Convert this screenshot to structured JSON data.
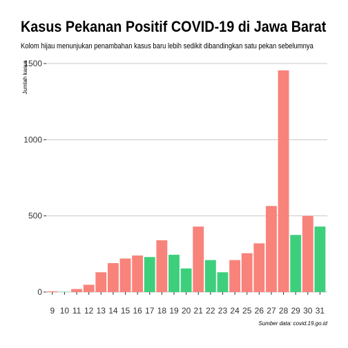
{
  "chart_data": {
    "type": "bar",
    "title": "Kasus Pekanan Positif COVID-19 di Jawa Barat",
    "subtitle": "Kolom hijau menunjukan penambahan kasus baru lebih sedikit dibandingkan satu pekan sebelumnya",
    "caption": "Sumber data: covid.19.go.id",
    "ylabel": "Jumlah kasus",
    "xlabel": "",
    "ylim": [
      0,
      1500
    ],
    "yticks": [
      "0",
      "500",
      "1000",
      "1500"
    ],
    "categories": [
      "9",
      "10",
      "11",
      "12",
      "13",
      "14",
      "15",
      "16",
      "17",
      "18",
      "19",
      "20",
      "21",
      "22",
      "23",
      "24",
      "25",
      "26",
      "27",
      "28",
      "29",
      "30",
      "31"
    ],
    "values": [
      5,
      2,
      20,
      48,
      130,
      190,
      220,
      240,
      230,
      340,
      245,
      155,
      430,
      210,
      130,
      210,
      255,
      320,
      565,
      1455,
      375,
      500,
      430
    ],
    "decrease": [
      false,
      true,
      false,
      false,
      false,
      false,
      false,
      false,
      true,
      false,
      true,
      true,
      false,
      true,
      true,
      false,
      false,
      false,
      false,
      false,
      true,
      false,
      true
    ],
    "colors": {
      "increase": "#f8837a",
      "decrease": "#3ecf7d",
      "grid": "#c8c8c8"
    },
    "grid": true,
    "legend": "none"
  }
}
